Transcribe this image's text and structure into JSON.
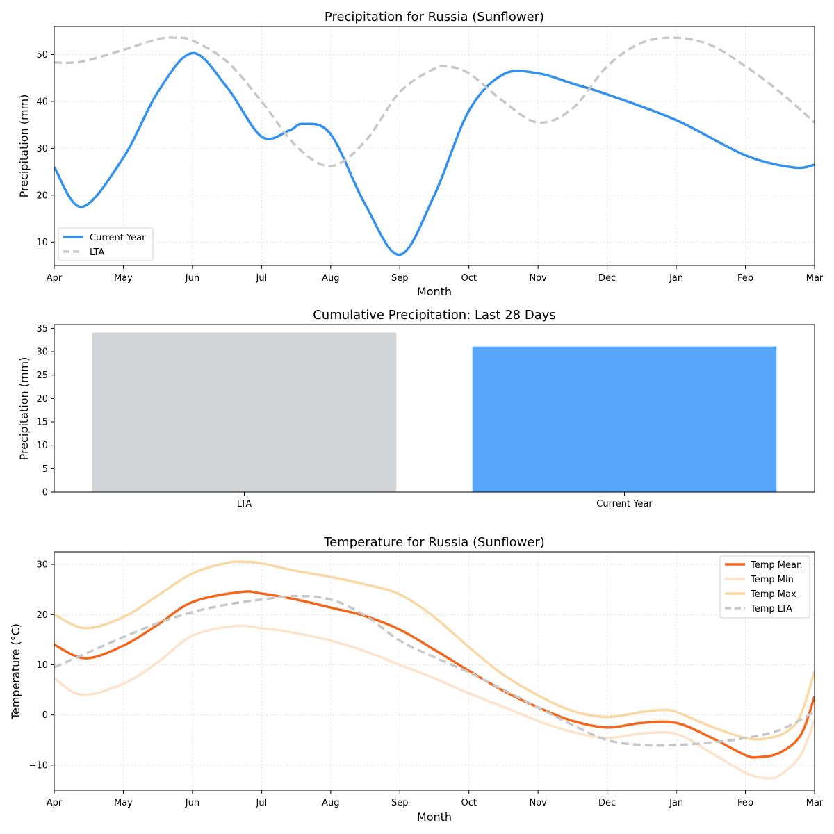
{
  "chart_data": [
    {
      "type": "line",
      "title": "Precipitation for Russia (Sunflower)",
      "xlabel": "Month",
      "ylabel": "Precipitation (mm)",
      "x_ticks": [
        "Apr",
        "May",
        "Jun",
        "Jul",
        "Aug",
        "Sep",
        "Oct",
        "Nov",
        "Dec",
        "Jan",
        "Feb",
        "Mar"
      ],
      "xlim": [
        0,
        11
      ],
      "ylim": [
        5,
        56
      ],
      "yticks": [
        10,
        20,
        30,
        40,
        50
      ],
      "grid": true,
      "legend_position": "lower-left",
      "series": [
        {
          "name": "Current Year",
          "color": "#3391ef",
          "style": "solid",
          "x": [
            0,
            0.4,
            1,
            1.5,
            2,
            2.5,
            3,
            3.4,
            3.6,
            4,
            4.5,
            5,
            5.5,
            6,
            6.5,
            7,
            7.5,
            8,
            9,
            10,
            10.7,
            11
          ],
          "y": [
            26,
            17.5,
            28,
            42,
            50.3,
            43,
            32.5,
            33.8,
            35.2,
            33,
            18,
            7.3,
            20,
            38,
            45.8,
            46,
            43.8,
            41.5,
            36,
            28.5,
            25.9,
            26.5
          ]
        },
        {
          "name": "LTA",
          "color": "#c8c8c8",
          "style": "dashed",
          "x": [
            0,
            0.4,
            1,
            1.5,
            1.75,
            2,
            2.5,
            3,
            3.5,
            4,
            4.5,
            5,
            5.5,
            5.7,
            6,
            6.5,
            7,
            7.5,
            8,
            8.5,
            9,
            9.5,
            10,
            10.5,
            11
          ],
          "y": [
            48.3,
            48.5,
            51,
            53.3,
            53.6,
            53,
            48.5,
            40,
            30.5,
            26.2,
            31.5,
            42,
            47,
            47.4,
            46,
            40,
            35.5,
            38.5,
            47.5,
            52.5,
            53.6,
            52,
            47.5,
            42,
            35.5
          ]
        }
      ]
    },
    {
      "type": "bar",
      "title": "Cumulative Precipitation: Last 28 Days",
      "xlabel": "",
      "ylabel": "Precipitation (mm)",
      "categories": [
        "LTA",
        "Current Year"
      ],
      "values": [
        34.1,
        31.1
      ],
      "colors": [
        "#d1d5d8",
        "#58a6fa"
      ],
      "ylim": [
        0,
        35.8
      ],
      "yticks": [
        0,
        5,
        10,
        15,
        20,
        25,
        30,
        35
      ],
      "grid": false
    },
    {
      "type": "line",
      "title": "Temperature for Russia (Sunflower)",
      "xlabel": "Month",
      "ylabel": "Temperature (°C)",
      "x_ticks": [
        "Apr",
        "May",
        "Jun",
        "Jul",
        "Aug",
        "Sep",
        "Oct",
        "Nov",
        "Dec",
        "Jan",
        "Feb",
        "Mar"
      ],
      "xlim": [
        0,
        11
      ],
      "ylim": [
        -15,
        32.5
      ],
      "yticks": [
        -10,
        0,
        10,
        20,
        30
      ],
      "grid": true,
      "legend_position": "top-right",
      "series": [
        {
          "name": "Temp Mean",
          "color": "#f4661b",
          "style": "solid",
          "x": [
            0,
            0.45,
            1,
            1.5,
            2,
            2.7,
            3,
            3.5,
            4,
            4.5,
            5,
            5.5,
            6,
            6.5,
            7,
            7.5,
            8,
            8.5,
            9,
            9.5,
            10,
            10.2,
            10.5,
            10.8,
            11
          ],
          "y": [
            14,
            11.3,
            13.8,
            18,
            22.5,
            24.5,
            24.2,
            23,
            21.4,
            19.7,
            17,
            13,
            8.8,
            4.8,
            1.5,
            -1.2,
            -2.5,
            -1.6,
            -1.6,
            -4.5,
            -8,
            -8.4,
            -7.5,
            -4,
            3.7
          ]
        },
        {
          "name": "Temp Min",
          "color": "#fde3cc",
          "style": "solid",
          "x": [
            0,
            0.4,
            1,
            1.5,
            2,
            2.6,
            3,
            3.5,
            4,
            4.5,
            5,
            5.5,
            6,
            6.5,
            7,
            7.5,
            8,
            8.5,
            9,
            9.5,
            10,
            10.3,
            10.5,
            10.8,
            11
          ],
          "y": [
            7.3,
            4,
            6.2,
            10.5,
            15.8,
            17.7,
            17.3,
            16.3,
            14.8,
            12.7,
            10,
            7.3,
            4.3,
            1.6,
            -1.2,
            -3.4,
            -4.6,
            -3.7,
            -3.8,
            -7.5,
            -11.5,
            -12.6,
            -12,
            -8,
            -1
          ]
        },
        {
          "name": "Temp Max",
          "color": "#f9d8a4",
          "style": "solid",
          "x": [
            0,
            0.45,
            1,
            1.5,
            2,
            2.5,
            2.75,
            3,
            3.5,
            4,
            4.5,
            5,
            5.5,
            6,
            6.5,
            7,
            7.5,
            8,
            8.5,
            8.8,
            9,
            9.5,
            10,
            10.3,
            10.6,
            10.8,
            11
          ],
          "y": [
            20,
            17.3,
            19.5,
            23.8,
            28.2,
            30.3,
            30.5,
            30.2,
            28.7,
            27.5,
            26,
            24,
            19.5,
            13.5,
            8,
            3.9,
            0.8,
            -0.4,
            0.6,
            1,
            0.6,
            -2.3,
            -4.6,
            -4.7,
            -3.3,
            0,
            8.7
          ]
        },
        {
          "name": "Temp LTA",
          "color": "#c8c8c8",
          "style": "dashed",
          "x": [
            0,
            0.5,
            1,
            1.5,
            2,
            2.5,
            3,
            3.5,
            4,
            4.5,
            5,
            5.5,
            6,
            6.5,
            7,
            7.5,
            8,
            8.5,
            9,
            9.5,
            10,
            10.5,
            11
          ],
          "y": [
            9.5,
            12.5,
            15.5,
            18.3,
            20.5,
            22,
            23,
            23.7,
            23,
            19.8,
            14.8,
            11.5,
            8.5,
            5,
            1.5,
            -2,
            -5,
            -6,
            -6,
            -5.5,
            -4.6,
            -3,
            0.6
          ]
        }
      ]
    }
  ]
}
